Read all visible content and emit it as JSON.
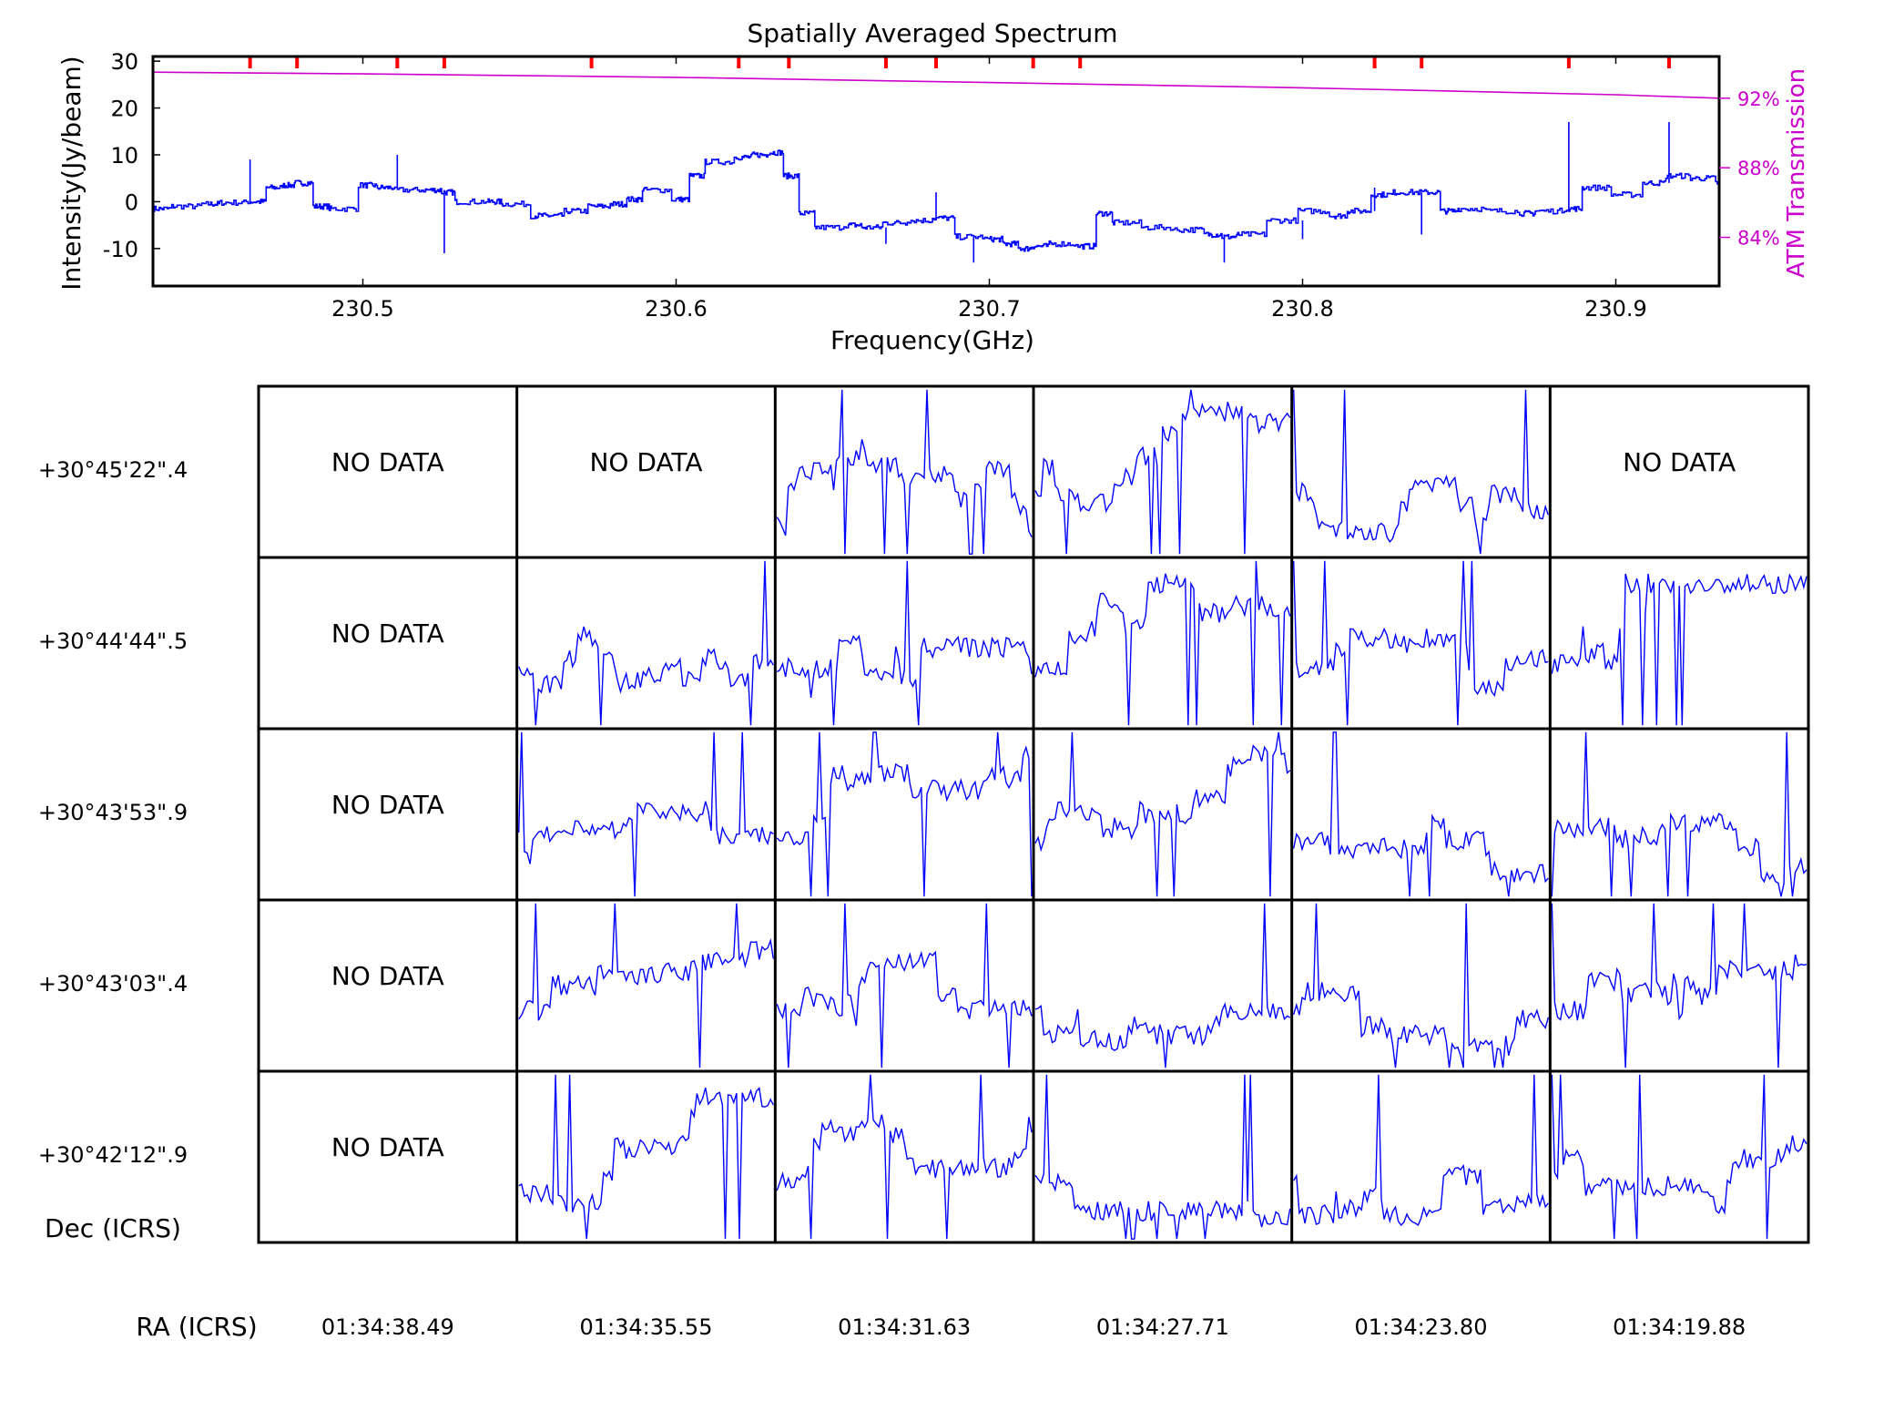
{
  "chart_data": [
    {
      "type": "line",
      "title": "Spatially Averaged Spectrum",
      "xlabel": "Frequency(GHz)",
      "ylabel": "Intensity(Jy/beam)",
      "y2label": "ATM Transmission",
      "xlim": [
        230.433,
        230.933
      ],
      "ylim": [
        -18,
        31
      ],
      "xticks": [
        "230.5",
        "230.6",
        "230.7",
        "230.8",
        "230.9"
      ],
      "yticks": [
        "-10",
        "0",
        "10",
        "20",
        "30"
      ],
      "y2ticks": [
        "84%",
        "88%",
        "92%"
      ],
      "y2tick_values": [
        84,
        88,
        92
      ],
      "y2lim": [
        81.2,
        94.4
      ],
      "grid": false,
      "colors": {
        "spectrum": "#0000ff",
        "atm": "#cc00cc",
        "markers": "#ff0000",
        "axes": "#000000"
      },
      "line_markers_x": [
        230.464,
        230.479,
        230.511,
        230.526,
        230.573,
        230.62,
        230.636,
        230.667,
        230.683,
        230.714,
        230.729,
        230.823,
        230.838,
        230.885,
        230.917
      ],
      "series": [
        {
          "style": "spectrum",
          "color": "#0000ff",
          "x": [
            230.433,
            230.44,
            230.45,
            230.455,
            230.464,
            230.47,
            230.475,
            230.479,
            230.485,
            230.49,
            230.5,
            230.505,
            230.511,
            230.52,
            230.526,
            230.53,
            230.54,
            230.545,
            230.555,
            230.56,
            230.565,
            230.573,
            230.58,
            230.585,
            230.59,
            230.6,
            230.605,
            230.61,
            230.62,
            230.625,
            230.63,
            230.635,
            230.64,
            230.645,
            230.655,
            230.66,
            230.667,
            230.675,
            230.683,
            230.69,
            230.7,
            230.705,
            230.71,
            230.714,
            230.72,
            230.729,
            230.735,
            230.74,
            230.75,
            230.76,
            230.77,
            230.775,
            230.78,
            230.79,
            230.8,
            230.81,
            230.815,
            230.823,
            230.83,
            230.838,
            230.845,
            230.85,
            230.86,
            230.87,
            230.875,
            230.885,
            230.89,
            230.9,
            230.91,
            230.917,
            230.925,
            230.933
          ],
          "y": [
            -1.5,
            -1,
            -0.5,
            -0.2,
            0,
            3,
            3.5,
            4,
            -1,
            -1.5,
            3.5,
            3,
            2.5,
            2.5,
            2,
            0,
            0,
            -0.5,
            -3,
            -3,
            -2,
            -1,
            -0.5,
            0.5,
            2.5,
            0.5,
            5.5,
            8.5,
            9.5,
            10,
            10.5,
            5.5,
            -2.5,
            -5.5,
            -5,
            -5.5,
            -4.5,
            -4,
            -3.5,
            -7.5,
            -8,
            -9,
            -10,
            -9.5,
            -9,
            -9.5,
            -2.5,
            -4.5,
            -5.5,
            -6,
            -7,
            -7.5,
            -7,
            -4,
            -2,
            -3,
            -2,
            1.5,
            2,
            2,
            -2,
            -1.5,
            -2,
            -2.5,
            -2,
            -1.5,
            3,
            1.5,
            4,
            5.5,
            5,
            4
          ]
        },
        {
          "style": "atm",
          "color": "#cc00cc",
          "x": [
            230.433,
            230.5,
            230.6,
            230.7,
            230.8,
            230.9,
            230.933
          ],
          "y": [
            93.5,
            93.4,
            93.2,
            92.9,
            92.6,
            92.2,
            92.0
          ]
        }
      ]
    },
    {
      "type": "line",
      "title": "",
      "xlabel": "RA (ICRS)",
      "ylabel": "Dec (ICRS)",
      "columns": [
        "01:34:38.49",
        "01:34:35.55",
        "01:34:31.63",
        "01:34:27.71",
        "01:34:23.80",
        "01:34:19.88"
      ],
      "rows": [
        "+30°45'22\".4",
        "+30°44'44\".5",
        "+30°43'53\".9",
        "+30°43'03\".4",
        "+30°42'12\".9"
      ],
      "no_data_label": "NO DATA",
      "no_data_cells": [
        [
          0,
          0
        ],
        [
          0,
          1
        ],
        [
          0,
          5
        ],
        [
          1,
          0
        ],
        [
          2,
          0
        ],
        [
          3,
          0
        ],
        [
          4,
          0
        ]
      ],
      "series_color": "#0000ff"
    }
  ]
}
